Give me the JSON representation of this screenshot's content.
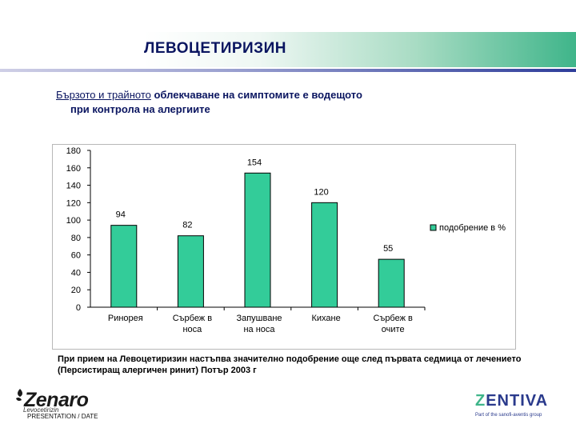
{
  "header": {
    "title": "ЛЕВОЦЕТИРИЗИН",
    "subtitle_underlined": "Бързото и трайното",
    "subtitle_rest": " облекчаване на симптомите е водещото",
    "subtitle_line2": "при контрола на алергиите"
  },
  "chart_data": {
    "type": "bar",
    "categories": [
      [
        "Ринорея"
      ],
      [
        "Сърбеж в",
        "носа"
      ],
      [
        "Запушване",
        "на носа"
      ],
      [
        "Кихане"
      ],
      [
        "Сърбеж в",
        "очите"
      ]
    ],
    "series": [
      {
        "name": "подобрение в %",
        "values": [
          94,
          82,
          154,
          120,
          55
        ]
      }
    ],
    "ylim": [
      0,
      180
    ],
    "yticks": [
      "0",
      "20",
      "40",
      "60",
      "80",
      "100",
      "120",
      "140",
      "160",
      "180"
    ],
    "grid": false,
    "legend_position": "right",
    "bar_color": "#33cc99"
  },
  "footnote": "При прием на Левоцетиризин настъпва значително подобрение още след първата седмица от лечението (Персистиращ алергичен ринит) Потър 2003 г",
  "branding": {
    "left_logo": "Zenaro",
    "left_logo_sub": "Levocetirizin",
    "presentation_label": "PRESENTATION / DATE",
    "right_logo_z": "Z",
    "right_logo_rest": "ENTIVA",
    "right_tagline": "Part of the sanofi-aventis group",
    "brand_green": "#3fb58a",
    "brand_blue": "#2a3a8c"
  }
}
